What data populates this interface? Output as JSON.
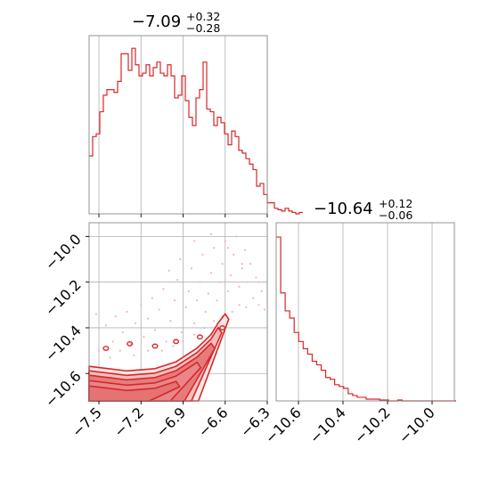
{
  "chart_data": [
    {
      "type": "histogram",
      "panel": "top-left",
      "title": {
        "main": "−7.09",
        "plus": "+0.32",
        "minus": "−0.28"
      },
      "xlim": [
        -7.57,
        -6.3
      ],
      "xticks": [
        -7.5,
        -7.2,
        -6.9,
        -6.6,
        -6.3
      ],
      "grid": true,
      "color": "#d62728",
      "bin_width": 0.0254,
      "counts": [
        0.21,
        0.28,
        0.29,
        0.37,
        0.43,
        0.45,
        0.45,
        0.44,
        0.48,
        0.58,
        0.58,
        0.52,
        0.6,
        0.54,
        0.5,
        0.51,
        0.54,
        0.5,
        0.53,
        0.55,
        0.51,
        0.5,
        0.54,
        0.5,
        0.42,
        0.43,
        0.5,
        0.41,
        0.35,
        0.32,
        0.42,
        0.45,
        0.55,
        0.38,
        0.37,
        0.32,
        0.35,
        0.33,
        0.29,
        0.25,
        0.3,
        0.28,
        0.23,
        0.22,
        0.2,
        0.18,
        0.16,
        0.1,
        0.11,
        0.07,
        0.04,
        0.04,
        0.02,
        0.015,
        0.01,
        0.02,
        0.01,
        0.005,
        0.0,
        0.005
      ]
    },
    {
      "type": "contour",
      "panel": "bottom-left",
      "xlim": [
        -7.57,
        -6.3
      ],
      "ylim": [
        -10.72,
        -9.94
      ],
      "xticks": [
        -7.5,
        -7.2,
        -6.9,
        -6.6,
        -6.3
      ],
      "xtick_labels": [
        "−7.5",
        "−7.2",
        "−6.9",
        "−6.6",
        "−6.3"
      ],
      "yticks": [
        -10.6,
        -10.4,
        -10.2,
        -10.0
      ],
      "ytick_labels": [
        "−10.6",
        "−10.4",
        "−10.2",
        "−10.0"
      ],
      "grid": true,
      "color": "#d62728",
      "fill_color": "#e57373",
      "scatter_color": "#f4b6b6",
      "ridge": [
        [
          -7.57,
          -10.6
        ],
        [
          -7.3,
          -10.62
        ],
        [
          -7.1,
          -10.61
        ],
        [
          -6.95,
          -10.58
        ],
        [
          -6.8,
          -10.52
        ],
        [
          -6.7,
          -10.46
        ],
        [
          -6.65,
          -10.41
        ],
        [
          -6.6,
          -10.37
        ]
      ],
      "scatter_points": [
        [
          -7.52,
          -10.34
        ],
        [
          -7.45,
          -10.39
        ],
        [
          -7.4,
          -10.46
        ],
        [
          -7.38,
          -10.35
        ],
        [
          -7.33,
          -10.42
        ],
        [
          -7.3,
          -10.33
        ],
        [
          -7.27,
          -10.47
        ],
        [
          -7.24,
          -10.38
        ],
        [
          -7.2,
          -10.3
        ],
        [
          -7.18,
          -10.44
        ],
        [
          -7.15,
          -10.36
        ],
        [
          -7.12,
          -10.27
        ],
        [
          -7.1,
          -10.41
        ],
        [
          -7.07,
          -10.32
        ],
        [
          -7.04,
          -10.23
        ],
        [
          -7.02,
          -10.46
        ],
        [
          -6.99,
          -10.37
        ],
        [
          -6.96,
          -10.28
        ],
        [
          -6.94,
          -10.19
        ],
        [
          -6.91,
          -10.42
        ],
        [
          -6.88,
          -10.31
        ],
        [
          -6.86,
          -10.24
        ],
        [
          -6.84,
          -10.14
        ],
        [
          -6.82,
          -10.38
        ],
        [
          -6.8,
          -10.28
        ],
        [
          -6.78,
          -10.2
        ],
        [
          -6.76,
          -10.08
        ],
        [
          -6.74,
          -10.33
        ],
        [
          -6.72,
          -10.25
        ],
        [
          -6.7,
          -10.16
        ],
        [
          -6.68,
          -10.05
        ],
        [
          -6.66,
          -10.28
        ],
        [
          -6.64,
          -10.2
        ],
        [
          -6.62,
          -10.12
        ],
        [
          -6.6,
          -10.02
        ],
        [
          -6.58,
          -10.24
        ],
        [
          -6.56,
          -10.17
        ],
        [
          -6.54,
          -10.08
        ],
        [
          -6.52,
          -10.0
        ],
        [
          -6.5,
          -10.22
        ],
        [
          -6.48,
          -10.14
        ],
        [
          -6.46,
          -10.06
        ],
        [
          -6.44,
          -10.2
        ],
        [
          -6.42,
          -10.12
        ],
        [
          -6.4,
          -10.27
        ],
        [
          -6.38,
          -10.18
        ],
        [
          -6.36,
          -10.3
        ],
        [
          -6.34,
          -10.24
        ],
        [
          -6.32,
          -10.32
        ],
        [
          -7.5,
          -10.5
        ],
        [
          -7.42,
          -10.53
        ],
        [
          -7.35,
          -10.5
        ],
        [
          -7.25,
          -10.52
        ],
        [
          -7.15,
          -10.5
        ],
        [
          -7.05,
          -10.5
        ],
        [
          -6.97,
          -10.48
        ],
        [
          -6.9,
          -10.46
        ],
        [
          -6.82,
          -10.43
        ],
        [
          -6.75,
          -10.4
        ],
        [
          -6.68,
          -10.37
        ],
        [
          -6.62,
          -10.35
        ],
        [
          -6.55,
          -10.33
        ],
        [
          -6.5,
          -10.3
        ],
        [
          -6.45,
          -10.31
        ],
        [
          -6.7,
          -9.99
        ],
        [
          -6.82,
          -10.02
        ],
        [
          -6.58,
          -10.05
        ],
        [
          -6.92,
          -10.1
        ],
        [
          -7.0,
          -10.15
        ],
        [
          -6.48,
          -10.12
        ],
        [
          -6.36,
          -10.2
        ]
      ]
    },
    {
      "type": "histogram",
      "panel": "bottom-right",
      "title": {
        "main": "−10.64",
        "plus": "+0.12",
        "minus": "−0.06"
      },
      "xlim": [
        -10.7,
        -9.9
      ],
      "xticks": [
        -10.6,
        -10.4,
        -10.2,
        -10.0
      ],
      "xtick_labels": [
        "−10.6",
        "−10.4",
        "−10.2",
        "−10.0"
      ],
      "grid": true,
      "color": "#d62728",
      "bin_width": 0.0202,
      "counts": [
        0.91,
        0.6,
        0.5,
        0.46,
        0.38,
        0.33,
        0.29,
        0.26,
        0.22,
        0.2,
        0.17,
        0.13,
        0.12,
        0.09,
        0.08,
        0.07,
        0.04,
        0.03,
        0.02,
        0.02,
        0.01,
        0.01,
        0.01,
        0.005,
        0.005,
        0.0,
        0.0,
        0.005,
        0.0,
        0.0,
        0.0,
        0.0,
        0.0,
        0.0,
        0.0,
        0.0,
        0.0,
        0.0,
        0.0,
        0.0
      ]
    }
  ]
}
